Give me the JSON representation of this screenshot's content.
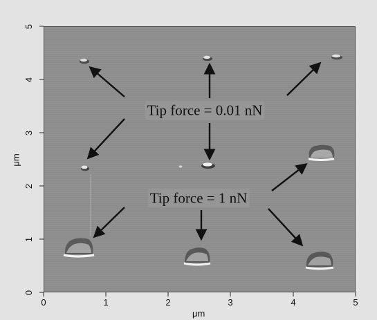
{
  "image": {
    "x_axis": {
      "label": "μm",
      "ticks": [
        "0",
        "1",
        "2",
        "3",
        "4",
        "5"
      ]
    },
    "y_axis": {
      "label": "μm",
      "ticks": [
        "0",
        "1",
        "2",
        "3",
        "4",
        "5"
      ]
    },
    "annotations": {
      "low_force": "Tip force = 0.01 nN",
      "high_force": "Tip force = 1 nN"
    },
    "colors": {
      "background": "#e3e3e3",
      "plot_surface": "#8e8e8e",
      "feature_highlight": "#f2f2f2"
    }
  }
}
